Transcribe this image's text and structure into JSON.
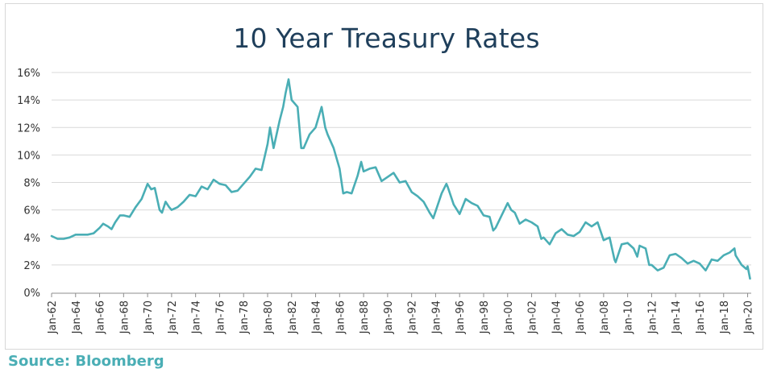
{
  "source": "Source: Bloomberg",
  "colors": {
    "line": "#4aaeb5",
    "title": "#1f3f5b",
    "grid": "#d9d9d9"
  },
  "chart_data": {
    "type": "line",
    "title": "10 Year Treasury Rates",
    "xlabel": "",
    "ylabel": "",
    "x_range": [
      1962.0,
      2020.3
    ],
    "ylim": [
      0,
      16
    ],
    "y_ticks": [
      "0%",
      "2%",
      "4%",
      "6%",
      "8%",
      "10%",
      "12%",
      "14%",
      "16%"
    ],
    "x_tick_labels": [
      "Jan-62",
      "Jan-64",
      "Jan-66",
      "Jan-68",
      "Jan-70",
      "Jan-72",
      "Jan-74",
      "Jan-76",
      "Jan-78",
      "Jan-80",
      "Jan-82",
      "Jan-84",
      "Jan-86",
      "Jan-88",
      "Jan-90",
      "Jan-92",
      "Jan-94",
      "Jan-96",
      "Jan-98",
      "Jan-00",
      "Jan-02",
      "Jan-04",
      "Jan-06",
      "Jan-08",
      "Jan-10",
      "Jan-12",
      "Jan-14",
      "Jan-16",
      "Jan-18",
      "Jan-20"
    ],
    "grid": "horizontal",
    "series": [
      {
        "x": [
          1962.0,
          1962.5,
          1963.0,
          1963.5,
          1964.0,
          1964.5,
          1965.0,
          1965.5,
          1966.0,
          1966.3,
          1966.7,
          1967.0,
          1967.3,
          1967.7,
          1968.0,
          1968.5,
          1969.0,
          1969.5,
          1970.0,
          1970.3,
          1970.6,
          1971.0,
          1971.2,
          1971.5,
          1971.8,
          1972.0,
          1972.5,
          1973.0,
          1973.5,
          1974.0,
          1974.5,
          1975.0,
          1975.5,
          1976.0,
          1976.5,
          1977.0,
          1977.5,
          1978.0,
          1978.5,
          1979.0,
          1979.5,
          1980.0,
          1980.2,
          1980.5,
          1981.0,
          1981.3,
          1981.5,
          1981.75,
          1982.0,
          1982.5,
          1982.8,
          1983.0,
          1983.5,
          1984.0,
          1984.5,
          1984.8,
          1985.0,
          1985.5,
          1986.0,
          1986.3,
          1986.6,
          1987.0,
          1987.5,
          1987.8,
          1988.0,
          1988.5,
          1989.0,
          1989.5,
          1990.0,
          1990.5,
          1991.0,
          1991.5,
          1992.0,
          1992.5,
          1993.0,
          1993.5,
          1993.8,
          1994.0,
          1994.5,
          1994.9,
          1995.0,
          1995.5,
          1996.0,
          1996.5,
          1997.0,
          1997.5,
          1998.0,
          1998.5,
          1998.8,
          1999.0,
          1999.5,
          2000.0,
          2000.3,
          2000.6,
          2001.0,
          2001.5,
          2002.0,
          2002.5,
          2002.8,
          2003.0,
          2003.5,
          2004.0,
          2004.5,
          2005.0,
          2005.5,
          2006.0,
          2006.5,
          2007.0,
          2007.5,
          2008.0,
          2008.5,
          2008.9,
          2009.0,
          2009.5,
          2010.0,
          2010.5,
          2010.8,
          2011.0,
          2011.5,
          2011.8,
          2012.0,
          2012.5,
          2013.0,
          2013.5,
          2014.0,
          2014.5,
          2015.0,
          2015.5,
          2016.0,
          2016.5,
          2017.0,
          2017.5,
          2018.0,
          2018.5,
          2018.9,
          2019.0,
          2019.5,
          2019.9,
          2020.0,
          2020.2
        ],
        "y": [
          4.1,
          3.9,
          3.9,
          4.0,
          4.2,
          4.2,
          4.2,
          4.3,
          4.7,
          5.0,
          4.8,
          4.6,
          5.1,
          5.6,
          5.6,
          5.5,
          6.2,
          6.8,
          7.9,
          7.5,
          7.6,
          6.0,
          5.8,
          6.6,
          6.2,
          6.0,
          6.2,
          6.6,
          7.1,
          7.0,
          7.7,
          7.5,
          8.2,
          7.9,
          7.8,
          7.3,
          7.4,
          7.9,
          8.4,
          9.0,
          8.9,
          10.8,
          12.0,
          10.5,
          12.5,
          13.5,
          14.5,
          15.5,
          14.0,
          13.5,
          10.5,
          10.5,
          11.5,
          12.0,
          13.5,
          12.0,
          11.5,
          10.5,
          9.0,
          7.2,
          7.3,
          7.2,
          8.5,
          9.5,
          8.8,
          9.0,
          9.1,
          8.1,
          8.4,
          8.7,
          8.0,
          8.1,
          7.3,
          7.0,
          6.6,
          5.8,
          5.4,
          5.9,
          7.2,
          7.9,
          7.7,
          6.4,
          5.7,
          6.8,
          6.5,
          6.3,
          5.6,
          5.5,
          4.5,
          4.7,
          5.6,
          6.5,
          6.0,
          5.8,
          5.0,
          5.3,
          5.1,
          4.8,
          3.9,
          4.0,
          3.5,
          4.3,
          4.6,
          4.2,
          4.1,
          4.4,
          5.1,
          4.8,
          5.1,
          3.8,
          4.0,
          2.4,
          2.2,
          3.5,
          3.6,
          3.2,
          2.6,
          3.4,
          3.2,
          2.0,
          2.0,
          1.6,
          1.8,
          2.7,
          2.8,
          2.5,
          2.1,
          2.3,
          2.1,
          1.6,
          2.4,
          2.3,
          2.7,
          2.9,
          3.2,
          2.7,
          2.0,
          1.7,
          1.9,
          1.0
        ]
      }
    ]
  }
}
